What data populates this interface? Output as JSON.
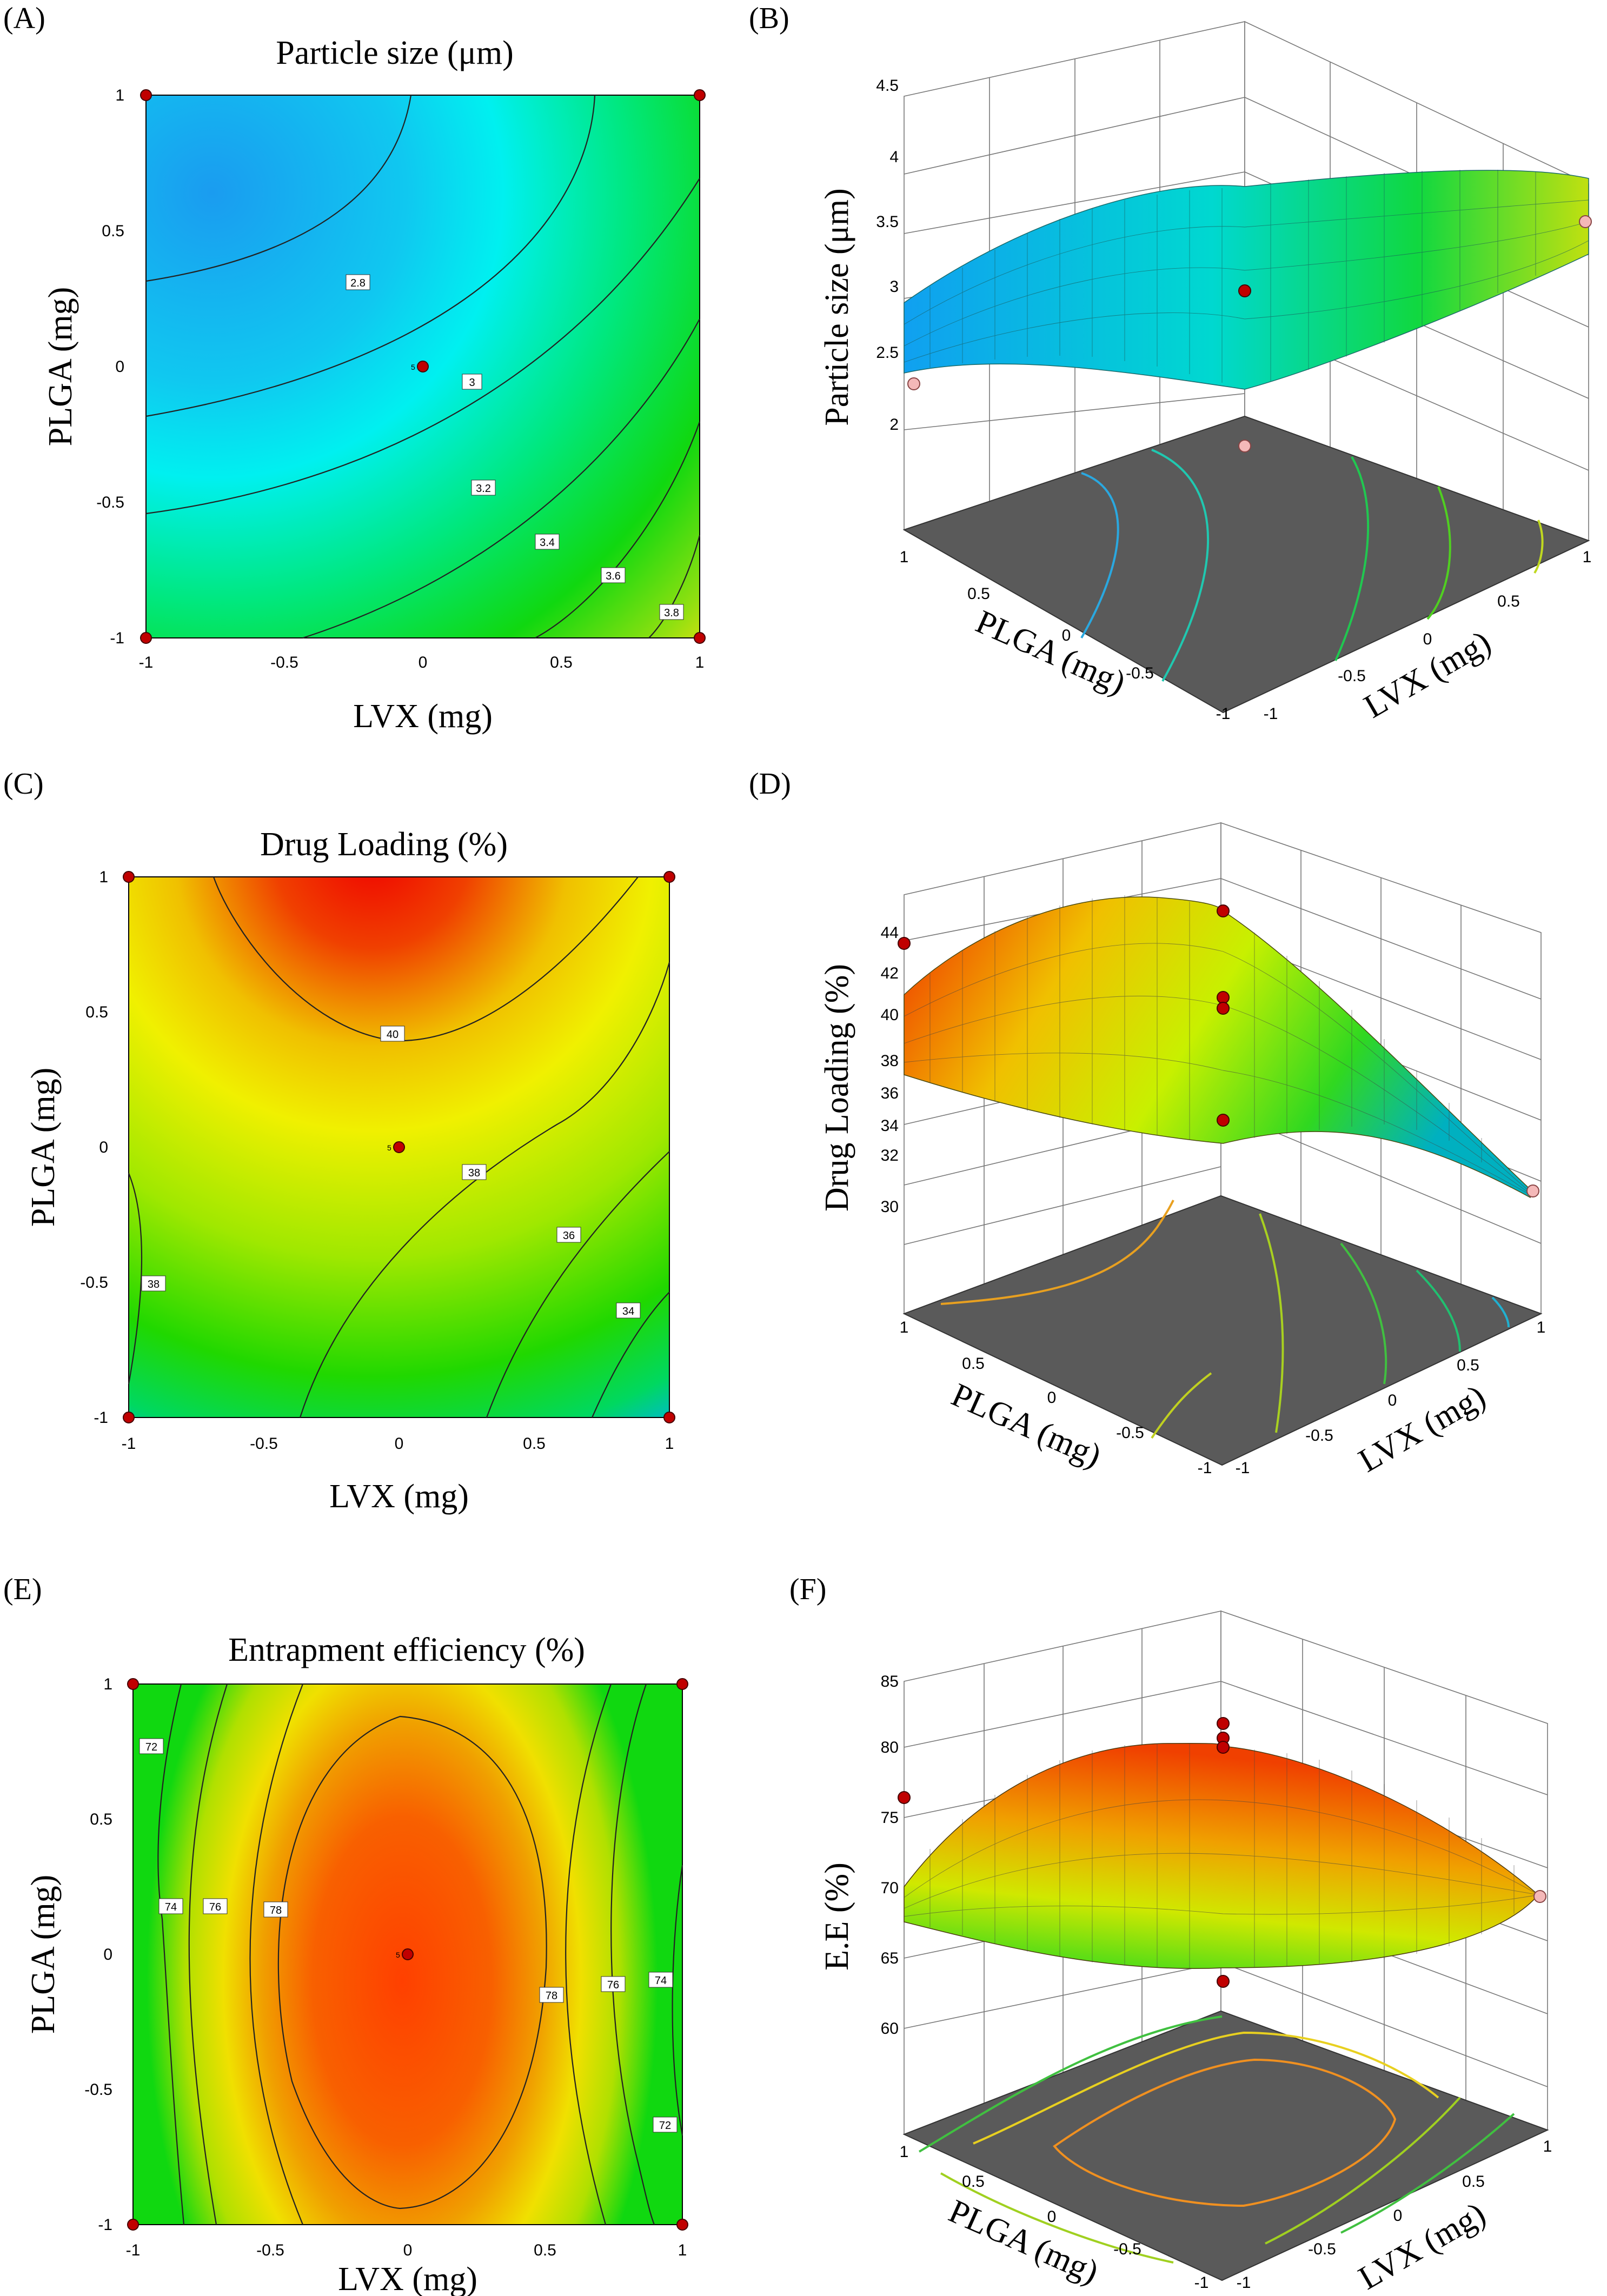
{
  "panels": {
    "A": {
      "letter": "(A)",
      "title": "Particle size (μm)",
      "xlabel": "LVX (mg)",
      "ylabel": "PLGA (mg)"
    },
    "B": {
      "letter": "(B)",
      "zlabel": "Particle size (μm)",
      "xlabel": "LVX (mg)",
      "ylabel": "PLGA (mg)"
    },
    "C": {
      "letter": "(C)",
      "title": "Drug Loading (%)",
      "xlabel": "LVX (mg)",
      "ylabel": "PLGA (mg)"
    },
    "D": {
      "letter": "(D)",
      "zlabel": "Drug Loading (%)",
      "xlabel": "LVX (mg)",
      "ylabel": "PLGA (mg)"
    },
    "E": {
      "letter": "(E)",
      "title": "Entrapment efficiency (%)",
      "xlabel": "LVX (mg)",
      "ylabel": "PLGA (mg)"
    },
    "F": {
      "letter": "(F)",
      "zlabel": "E.E (%)",
      "xlabel": "LVX (mg)",
      "ylabel": "PLGA (mg)"
    }
  },
  "center_point_label": "5",
  "chart_data": [
    {
      "type": "contour",
      "panel": "A",
      "title": "Particle size (μm)",
      "xlabel": "LVX (mg)",
      "ylabel": "PLGA (mg)",
      "xlim": [
        -1,
        1
      ],
      "ylim": [
        -1,
        1
      ],
      "xticks": [
        "-1",
        "-0.5",
        "0",
        "0.5",
        "1"
      ],
      "yticks": [
        "-1",
        "-0.5",
        "0",
        "0.5",
        "1"
      ],
      "colormap": [
        "#1a9cf0",
        "#00f5f5",
        "#00e000",
        "#f0e010"
      ],
      "contour_labels": [
        "2.8",
        "3",
        "3.2",
        "3.4",
        "3.6",
        "3.8"
      ],
      "design_points": [
        [
          -1,
          1
        ],
        [
          1,
          1
        ],
        [
          -1,
          -1
        ],
        [
          1,
          -1
        ],
        [
          0,
          0
        ]
      ],
      "center_replicates": 5
    },
    {
      "type": "surface",
      "panel": "B",
      "zlabel": "Particle size (μm)",
      "xlabel": "LVX (mg)",
      "ylabel": "PLGA (mg)",
      "zticks": [
        "2",
        "2.5",
        "3",
        "3.5",
        "4",
        "4.5"
      ],
      "xticks": [
        "-1",
        "-0.5",
        "0",
        "0.5",
        "1"
      ],
      "yticks": [
        "-1",
        "-0.5",
        "0",
        "0.5",
        "1"
      ],
      "zlim": [
        2,
        4.5
      ]
    },
    {
      "type": "contour",
      "panel": "C",
      "title": "Drug Loading (%)",
      "xlabel": "LVX (mg)",
      "ylabel": "PLGA (mg)",
      "xlim": [
        -1,
        1
      ],
      "ylim": [
        -1,
        1
      ],
      "xticks": [
        "-1",
        "-0.5",
        "0",
        "0.5",
        "1"
      ],
      "yticks": [
        "-1",
        "-0.5",
        "0",
        "0.5",
        "1"
      ],
      "colormap": [
        "#1070f0",
        "#00e000",
        "#f0f000",
        "#f00000"
      ],
      "contour_labels": [
        "40",
        "38",
        "36",
        "34",
        "38"
      ],
      "design_points": [
        [
          -1,
          1
        ],
        [
          1,
          1
        ],
        [
          -1,
          -1
        ],
        [
          1,
          -1
        ],
        [
          0,
          0
        ]
      ],
      "center_replicates": 5
    },
    {
      "type": "surface",
      "panel": "D",
      "zlabel": "Drug Loading (%)",
      "xlabel": "LVX (mg)",
      "ylabel": "PLGA (mg)",
      "zticks": [
        "30",
        "32",
        "34",
        "36",
        "38",
        "40",
        "42",
        "44"
      ],
      "xticks": [
        "-1",
        "-0.5",
        "0",
        "0.5",
        "1"
      ],
      "yticks": [
        "-1",
        "-0.5",
        "0",
        "0.5",
        "1"
      ],
      "zlim": [
        30,
        44
      ]
    },
    {
      "type": "contour",
      "panel": "E",
      "title": "Entrapment efficiency (%)",
      "xlabel": "LVX (mg)",
      "ylabel": "PLGA (mg)",
      "xlim": [
        -1,
        1
      ],
      "ylim": [
        -1,
        1
      ],
      "xticks": [
        "-1",
        "-0.5",
        "0",
        "0.5",
        "1"
      ],
      "yticks": [
        "-1",
        "-0.5",
        "0",
        "0.5",
        "1"
      ],
      "colormap": [
        "#00e000",
        "#f0f000",
        "#f08000",
        "#ff4000"
      ],
      "contour_labels": [
        "72",
        "74",
        "76",
        "78",
        "78",
        "76",
        "74",
        "72"
      ],
      "design_points": [
        [
          -1,
          1
        ],
        [
          1,
          1
        ],
        [
          -1,
          -1
        ],
        [
          1,
          -1
        ],
        [
          0,
          0
        ]
      ],
      "center_replicates": 5
    },
    {
      "type": "surface",
      "panel": "F",
      "zlabel": "E.E (%)",
      "xlabel": "LVX (mg)",
      "ylabel": "PLGA (mg)",
      "zticks": [
        "60",
        "65",
        "70",
        "75",
        "80",
        "85"
      ],
      "xticks": [
        "-1",
        "-0.5",
        "0",
        "0.5",
        "1"
      ],
      "yticks": [
        "-1",
        "-0.5",
        "0",
        "0.5",
        "1"
      ],
      "zlim": [
        60,
        85
      ]
    }
  ]
}
